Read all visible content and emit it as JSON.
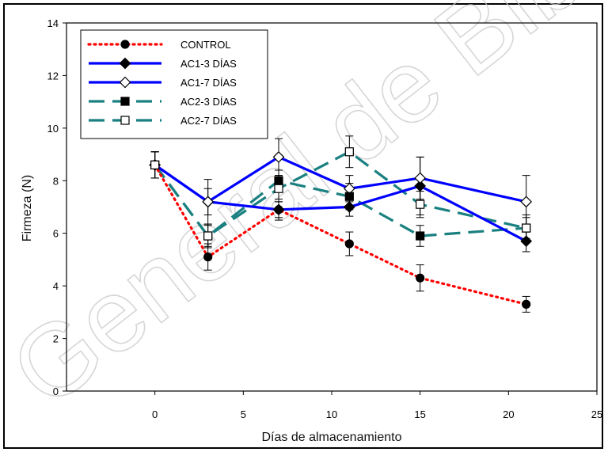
{
  "watermark": "General de Biblio",
  "chart_data": {
    "type": "line",
    "xlabel": "Días de almacenamiento",
    "ylabel": "Firmeza (N)",
    "xlim": [
      -5,
      25
    ],
    "ylim": [
      0,
      14
    ],
    "xticks": [
      0,
      5,
      10,
      15,
      20,
      25
    ],
    "yticks": [
      0,
      2,
      4,
      6,
      8,
      10,
      12,
      14
    ],
    "grid": false,
    "legend_position": "top-left",
    "series": [
      {
        "name": "CONTROL",
        "color": "#ff0000",
        "line_style": "dotted",
        "marker": "filled-circle",
        "x": [
          0,
          3,
          7,
          11,
          15,
          21
        ],
        "y": [
          8.6,
          5.1,
          6.9,
          5.6,
          4.3,
          3.3
        ],
        "error": [
          0.5,
          0.5,
          0.3,
          0.45,
          0.5,
          0.3
        ]
      },
      {
        "name": "AC1-3 DÍAS",
        "color": "#0000ff",
        "line_style": "solid",
        "marker": "filled-diamond",
        "x": [
          0,
          3,
          7,
          11,
          15,
          21
        ],
        "y": [
          8.6,
          7.2,
          6.9,
          7.0,
          7.8,
          5.7
        ],
        "error": [
          0.5,
          0.5,
          0.4,
          0.35,
          1.1,
          0.4
        ]
      },
      {
        "name": "AC1-7 DÍAS",
        "color": "#0000ff",
        "line_style": "solid",
        "marker": "open-diamond",
        "x": [
          0,
          3,
          7,
          11,
          15,
          21
        ],
        "y": [
          8.6,
          7.2,
          8.9,
          7.7,
          8.1,
          7.2
        ],
        "error": [
          0.5,
          0.85,
          0.7,
          0.5,
          0.8,
          1.0
        ]
      },
      {
        "name": "AC2-3 DÍAS",
        "color": "#1a8080",
        "line_style": "dashed",
        "marker": "filled-square",
        "x": [
          0,
          3,
          7,
          11,
          15,
          21
        ],
        "y": [
          8.6,
          5.9,
          8.0,
          7.4,
          5.9,
          6.2
        ],
        "error": [
          0.5,
          0.4,
          0.4,
          0.5,
          0.4,
          0.4
        ]
      },
      {
        "name": "AC2-7 DÍAS",
        "color": "#1a8080",
        "line_style": "dashed",
        "marker": "open-square",
        "x": [
          0,
          3,
          7,
          11,
          15,
          21
        ],
        "y": [
          8.6,
          5.9,
          7.7,
          9.1,
          7.1,
          6.2
        ],
        "error": [
          0.5,
          0.45,
          0.5,
          0.6,
          0.5,
          0.5
        ]
      }
    ]
  }
}
